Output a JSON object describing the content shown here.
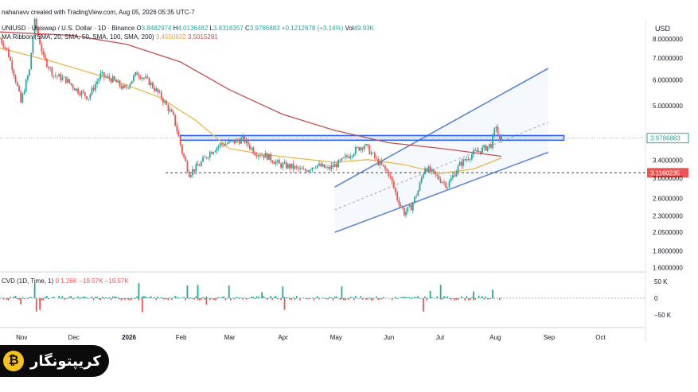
{
  "header": {
    "attribution": "nahanavv created with TradingView.com, Aug 05, 2026 05:35 UTC-7",
    "symbol_line": "UNIUSD · Uniswap / U.S. Dollar · 1D · Binance",
    "ohlc": [
      {
        "k": "O",
        "v": "3.8482974"
      },
      {
        "k": "H",
        "v": "4.0136482"
      },
      {
        "k": "L",
        "v": "3.8316357"
      },
      {
        "k": "C",
        "v": "3.9786883"
      }
    ],
    "change": "+0.1212678 (+3.14%)",
    "vol_label": "Vol",
    "vol_value": "49.93K",
    "ribbon_label": "MA Ribbon (SMA, 20, SMA, 50, SMA, 100, SMA, 200)",
    "ribbon_value_1": "3.4550832",
    "ribbon_value_2": "3.5015281",
    "cvd_label": "CVD (1D, Time, 1)",
    "cvd_values": [
      "0",
      "1.26K",
      "−19.57K",
      "−19.57K"
    ]
  },
  "colors": {
    "up": "#26a69a",
    "down": "#ef5350",
    "ma_fast": "#e8b84a",
    "ma_slow": "#c0504d",
    "channel": "#5b87d9",
    "zone": "#2962ff",
    "last_price_tag": "#26a69a",
    "support_tag": "#ef5350"
  },
  "brand": {
    "name": "کریپتونگار",
    "logo_glyph": "₿"
  },
  "chart_data": {
    "type": "candlestick",
    "log_scale": true,
    "currency_label": "USD",
    "price_axis_ticks": [
      8.0,
      7.0,
      6.0,
      5.0,
      3.4,
      3.0,
      2.6,
      2.3,
      2.05,
      1.8,
      1.6
    ],
    "price_axis_labels": [
      "8.0000000",
      "7.0000000",
      "6.0000000",
      "5.0000000",
      "3.4000000",
      "3.0000000",
      "2.6000000",
      "2.3000000",
      "2.0500000",
      "1.8000000",
      "1.6000000"
    ],
    "last_price": "3.9786883",
    "support_level": "3.1160235",
    "x_axis_labels": [
      "Nov",
      "Dec",
      "2026",
      "Feb",
      "Mar",
      "Apr",
      "May",
      "Jun",
      "Jul",
      "Aug",
      "Sep",
      "Oct"
    ],
    "cvd_axis_labels": [
      "50 K",
      "0",
      "−50 K"
    ],
    "resistance_zone": [
      3.92,
      4.05
    ],
    "close_path": [
      {
        "d": "2025-10-20",
        "c": 8.0
      },
      {
        "d": "2025-10-24",
        "c": 7.4
      },
      {
        "d": "2025-10-28",
        "c": 6.3
      },
      {
        "d": "2025-11-01",
        "c": 5.1
      },
      {
        "d": "2025-11-06",
        "c": 6.4
      },
      {
        "d": "2025-11-09",
        "c": 9.0
      },
      {
        "d": "2025-11-14",
        "c": 7.0
      },
      {
        "d": "2025-11-20",
        "c": 6.2
      },
      {
        "d": "2025-11-27",
        "c": 6.0
      },
      {
        "d": "2025-12-03",
        "c": 5.6
      },
      {
        "d": "2025-12-10",
        "c": 5.3
      },
      {
        "d": "2025-12-17",
        "c": 6.2
      },
      {
        "d": "2025-12-24",
        "c": 6.0
      },
      {
        "d": "2025-12-31",
        "c": 5.6
      },
      {
        "d": "2026-01-07",
        "c": 6.3
      },
      {
        "d": "2026-01-14",
        "c": 5.9
      },
      {
        "d": "2026-01-21",
        "c": 5.3
      },
      {
        "d": "2026-01-28",
        "c": 4.6
      },
      {
        "d": "2026-02-02",
        "c": 3.6
      },
      {
        "d": "2026-02-06",
        "c": 3.1
      },
      {
        "d": "2026-02-12",
        "c": 3.3
      },
      {
        "d": "2026-02-18",
        "c": 3.6
      },
      {
        "d": "2026-02-24",
        "c": 3.8
      },
      {
        "d": "2026-03-02",
        "c": 3.85
      },
      {
        "d": "2026-03-09",
        "c": 3.95
      },
      {
        "d": "2026-03-16",
        "c": 3.6
      },
      {
        "d": "2026-03-23",
        "c": 3.5
      },
      {
        "d": "2026-03-30",
        "c": 3.3
      },
      {
        "d": "2026-04-06",
        "c": 3.25
      },
      {
        "d": "2026-04-13",
        "c": 3.15
      },
      {
        "d": "2026-04-20",
        "c": 3.3
      },
      {
        "d": "2026-04-27",
        "c": 3.2
      },
      {
        "d": "2026-05-04",
        "c": 3.35
      },
      {
        "d": "2026-05-11",
        "c": 3.6
      },
      {
        "d": "2026-05-18",
        "c": 3.8
      },
      {
        "d": "2026-05-25",
        "c": 3.4
      },
      {
        "d": "2026-06-01",
        "c": 3.1
      },
      {
        "d": "2026-06-06",
        "c": 2.6
      },
      {
        "d": "2026-06-10",
        "c": 2.35
      },
      {
        "d": "2026-06-14",
        "c": 2.45
      },
      {
        "d": "2026-06-18",
        "c": 2.75
      },
      {
        "d": "2026-06-22",
        "c": 3.25
      },
      {
        "d": "2026-06-28",
        "c": 3.05
      },
      {
        "d": "2026-07-05",
        "c": 2.85
      },
      {
        "d": "2026-07-12",
        "c": 3.3
      },
      {
        "d": "2026-07-19",
        "c": 3.55
      },
      {
        "d": "2026-07-26",
        "c": 3.7
      },
      {
        "d": "2026-07-30",
        "c": 3.8
      },
      {
        "d": "2026-08-02",
        "c": 4.35
      },
      {
        "d": "2026-08-03",
        "c": 4.1
      },
      {
        "d": "2026-08-04",
        "c": 3.85
      },
      {
        "d": "2026-08-05",
        "c": 3.98
      }
    ],
    "ma_fast": [
      {
        "d": "2025-10-20",
        "v": 7.5
      },
      {
        "d": "2025-11-20",
        "v": 6.8
      },
      {
        "d": "2025-12-20",
        "v": 6.1
      },
      {
        "d": "2026-01-20",
        "v": 5.3
      },
      {
        "d": "2026-02-10",
        "v": 4.5
      },
      {
        "d": "2026-03-01",
        "v": 3.7
      },
      {
        "d": "2026-03-20",
        "v": 3.55
      },
      {
        "d": "2026-04-10",
        "v": 3.45
      },
      {
        "d": "2026-05-01",
        "v": 3.35
      },
      {
        "d": "2026-05-20",
        "v": 3.42
      },
      {
        "d": "2026-06-10",
        "v": 3.3
      },
      {
        "d": "2026-07-01",
        "v": 3.1
      },
      {
        "d": "2026-07-20",
        "v": 3.2
      },
      {
        "d": "2026-08-05",
        "v": 3.46
      }
    ],
    "ma_slow": [
      {
        "d": "2025-10-20",
        "v": 8.4
      },
      {
        "d": "2025-12-01",
        "v": 8.2
      },
      {
        "d": "2026-01-01",
        "v": 7.7
      },
      {
        "d": "2026-02-01",
        "v": 6.8
      },
      {
        "d": "2026-03-01",
        "v": 5.6
      },
      {
        "d": "2026-04-01",
        "v": 4.7
      },
      {
        "d": "2026-05-01",
        "v": 4.2
      },
      {
        "d": "2026-06-01",
        "v": 3.85
      },
      {
        "d": "2026-07-01",
        "v": 3.7
      },
      {
        "d": "2026-08-05",
        "v": 3.5
      }
    ],
    "channel": {
      "upper": [
        {
          "d": "2026-05-01",
          "v": 2.82
        },
        {
          "d": "2026-09-01",
          "v": 6.5
        }
      ],
      "mid": [
        {
          "d": "2026-05-01",
          "v": 2.4
        },
        {
          "d": "2026-09-01",
          "v": 4.45
        }
      ],
      "lower": [
        {
          "d": "2026-05-01",
          "v": 2.05
        },
        {
          "d": "2026-09-01",
          "v": 3.6
        }
      ]
    },
    "cvd_spikes": [
      {
        "d": "2025-11-01",
        "v": -18
      },
      {
        "d": "2025-11-09",
        "v": 45
      },
      {
        "d": "2025-11-10",
        "v": -40
      },
      {
        "d": "2025-11-12",
        "v": -35
      },
      {
        "d": "2026-01-08",
        "v": 45
      },
      {
        "d": "2026-01-10",
        "v": -42
      },
      {
        "d": "2026-02-05",
        "v": 38
      },
      {
        "d": "2026-02-11",
        "v": 40
      },
      {
        "d": "2026-02-16",
        "v": -20
      },
      {
        "d": "2026-03-01",
        "v": 38
      },
      {
        "d": "2026-03-20",
        "v": 18
      },
      {
        "d": "2026-04-01",
        "v": 35
      },
      {
        "d": "2026-04-02",
        "v": -35
      },
      {
        "d": "2026-05-05",
        "v": 35
      },
      {
        "d": "2026-06-21",
        "v": -40
      },
      {
        "d": "2026-06-25",
        "v": 22
      },
      {
        "d": "2026-07-01",
        "v": 40
      },
      {
        "d": "2026-07-20",
        "v": 20
      },
      {
        "d": "2026-07-31",
        "v": 25
      }
    ]
  }
}
